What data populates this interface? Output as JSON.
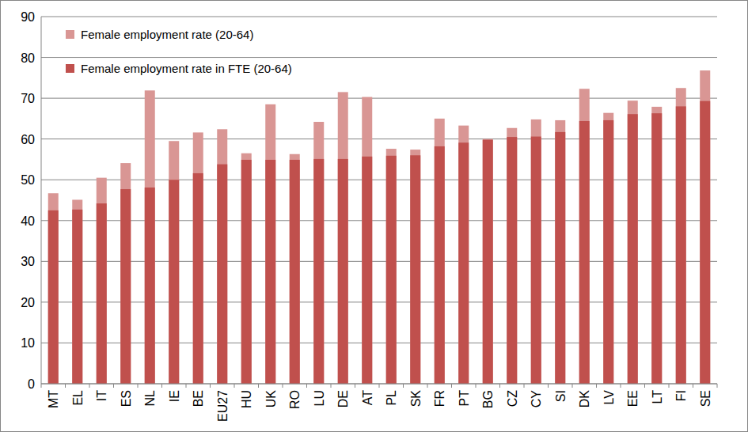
{
  "chart_data": {
    "type": "bar",
    "categories": [
      "MT",
      "EL",
      "IT",
      "ES",
      "NL",
      "IE",
      "BE",
      "EU27",
      "HU",
      "UK",
      "RO",
      "LU",
      "DE",
      "AT",
      "PL",
      "SK",
      "FR",
      "PT",
      "BG",
      "CZ",
      "CY",
      "SI",
      "DK",
      "LV",
      "EE",
      "LT",
      "FI",
      "SE"
    ],
    "series": [
      {
        "name": "Female employment rate (20-64)",
        "color": "#d99694",
        "values": [
          46.7,
          45.1,
          50.5,
          54.1,
          71.9,
          59.5,
          61.6,
          62.4,
          56.5,
          68.5,
          56.3,
          64.2,
          71.5,
          70.3,
          57.6,
          57.4,
          65.0,
          63.3,
          60.0,
          62.7,
          64.8,
          64.6,
          72.3,
          66.4,
          69.4,
          67.9,
          72.5,
          76.8
        ]
      },
      {
        "name": "Female employment rate in FTE (20-64)",
        "color": "#c0504d",
        "values": [
          42.5,
          42.7,
          44.2,
          47.7,
          48.1,
          50.0,
          51.6,
          53.8,
          54.9,
          54.9,
          54.9,
          55.1,
          55.1,
          55.7,
          55.9,
          56.0,
          58.2,
          59.1,
          59.8,
          60.5,
          60.6,
          61.7,
          64.4,
          64.6,
          66.1,
          66.3,
          68.0,
          69.3
        ]
      }
    ],
    "stacked": false,
    "ylim": [
      0,
      90
    ],
    "yticks": [
      0,
      10,
      20,
      30,
      40,
      50,
      60,
      70,
      80,
      90
    ],
    "grid": true,
    "legend": "top-left"
  }
}
